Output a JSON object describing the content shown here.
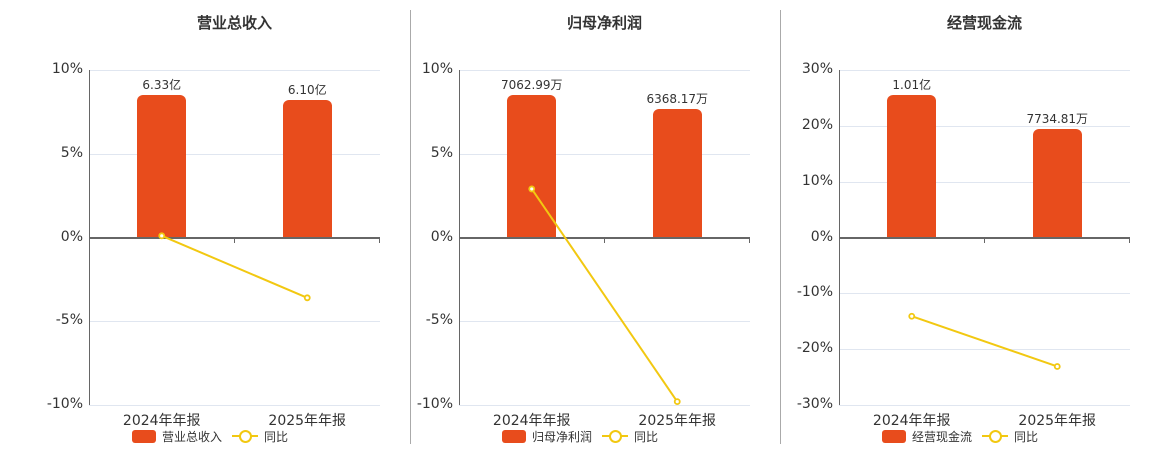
{
  "colors": {
    "bar": "#e84c1c",
    "line": "#f2c811",
    "grid": "#e0e6f0",
    "axis": "#666666"
  },
  "legend": {
    "line_label": "同比"
  },
  "chart_data": [
    {
      "type": "bar+line",
      "title": "营业总收入",
      "categories": [
        "2024年年报",
        "2025年年报"
      ],
      "series": [
        {
          "name": "营业总收入",
          "type": "bar",
          "labels": [
            "6.33亿",
            "6.10亿"
          ],
          "values_pct_axis": [
            8.5,
            8.2
          ]
        },
        {
          "name": "同比",
          "type": "line",
          "values": [
            0.1,
            -3.6
          ]
        }
      ],
      "yticks": [
        "10%",
        "5%",
        "0%",
        "-5%",
        "-10%"
      ],
      "ylim": [
        -10,
        10
      ]
    },
    {
      "type": "bar+line",
      "title": "归母净利润",
      "categories": [
        "2024年年报",
        "2025年年报"
      ],
      "series": [
        {
          "name": "归母净利润",
          "type": "bar",
          "labels": [
            "7062.99万",
            "6368.17万"
          ],
          "values_pct_axis": [
            8.5,
            7.7
          ]
        },
        {
          "name": "同比",
          "type": "line",
          "values": [
            2.9,
            -9.8
          ]
        }
      ],
      "yticks": [
        "10%",
        "5%",
        "0%",
        "-5%",
        "-10%"
      ],
      "ylim": [
        -10,
        10
      ]
    },
    {
      "type": "bar+line",
      "title": "经营现金流",
      "categories": [
        "2024年年报",
        "2025年年报"
      ],
      "series": [
        {
          "name": "经营现金流",
          "type": "bar",
          "labels": [
            "1.01亿",
            "7734.81万"
          ],
          "values_pct_axis": [
            25.5,
            19.5
          ]
        },
        {
          "name": "同比",
          "type": "line",
          "values": [
            -14.1,
            -23.1
          ]
        }
      ],
      "yticks": [
        "30%",
        "20%",
        "10%",
        "0%",
        "-10%",
        "-20%",
        "-30%"
      ],
      "ylim": [
        -30,
        30
      ]
    }
  ]
}
